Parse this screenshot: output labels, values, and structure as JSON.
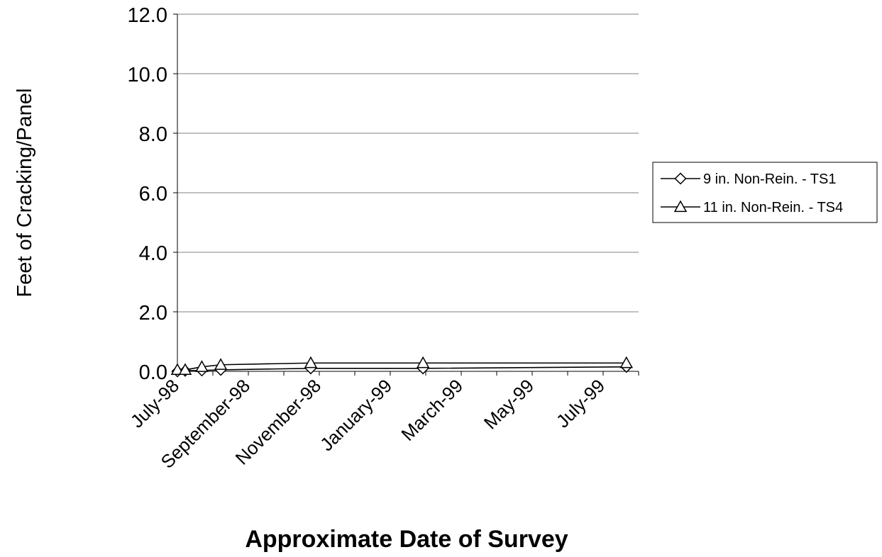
{
  "chart_data": {
    "type": "line",
    "title": "",
    "xlabel": "Approximate Date of Survey",
    "ylabel": "Feet of Cracking/Panel",
    "x_tick_labels": [
      "July-98",
      "September-98",
      "November-98",
      "January-99",
      "March-99",
      "May-99",
      "July-99"
    ],
    "y_tick_labels": [
      "0.0",
      "2.0",
      "4.0",
      "6.0",
      "8.0",
      "10.0",
      "12.0"
    ],
    "ylim": [
      0,
      12
    ],
    "xlim": [
      "1998-07-01",
      "1999-08-20"
    ],
    "grid": "horizontal",
    "legend_position": "right",
    "series": [
      {
        "name": "9 in. Non-Rein. - TS1",
        "marker": "diamond",
        "color": "#000000",
        "points": [
          {
            "x": "1998-07-01",
            "y": 0.0
          },
          {
            "x": "1998-07-08",
            "y": 0.02
          },
          {
            "x": "1998-07-23",
            "y": 0.03
          },
          {
            "x": "1998-08-09",
            "y": 0.05
          },
          {
            "x": "1998-10-29",
            "y": 0.1
          },
          {
            "x": "1999-02-07",
            "y": 0.1
          },
          {
            "x": "1999-08-09",
            "y": 0.15
          }
        ]
      },
      {
        "name": "11 in. Non-Rein. - TS4",
        "marker": "triangle",
        "color": "#000000",
        "points": [
          {
            "x": "1998-07-01",
            "y": 0.05
          },
          {
            "x": "1998-07-08",
            "y": 0.05
          },
          {
            "x": "1998-07-23",
            "y": 0.15
          },
          {
            "x": "1998-08-09",
            "y": 0.22
          },
          {
            "x": "1998-10-29",
            "y": 0.28
          },
          {
            "x": "1999-02-07",
            "y": 0.28
          },
          {
            "x": "1999-08-09",
            "y": 0.28
          }
        ]
      }
    ]
  }
}
